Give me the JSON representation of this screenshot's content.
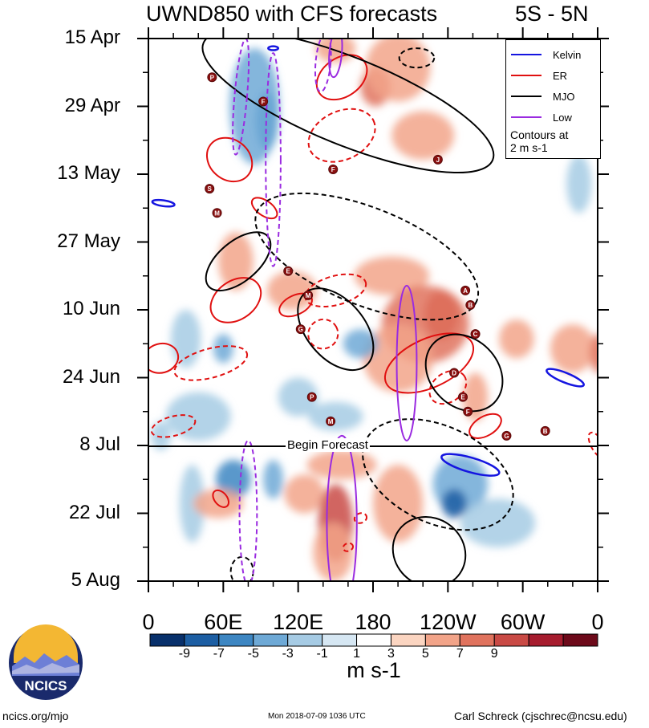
{
  "chart_data": {
    "type": "heatmap",
    "title": "UWND850 with CFS forecasts",
    "region": "5S - 5N",
    "x_tick_labels": [
      "0",
      "60E",
      "120E",
      "180",
      "120W",
      "60W",
      "0"
    ],
    "x_range_deg": [
      0,
      360
    ],
    "y_tick_labels": [
      "15 Apr",
      "29 Apr",
      "13 May",
      "27 May",
      "10 Jun",
      "24 Jun",
      "8 Jul",
      "22 Jul",
      "5 Aug"
    ],
    "y_range_days": [
      0,
      112
    ],
    "forecast_label": "Begin Forecast",
    "forecast_start_day": 84,
    "colorbar": {
      "labels": [
        "-9",
        "-7",
        "-5",
        "-3",
        "-1",
        "1",
        "3",
        "5",
        "7",
        "9"
      ],
      "units": "m s-1",
      "colors": [
        "#08306b",
        "#1c5ea3",
        "#3d86c2",
        "#6ea9d6",
        "#a6cbe4",
        "#d6e7f3",
        "#ffffff",
        "#fbd5c1",
        "#f2a489",
        "#e0735e",
        "#c94a45",
        "#a61c2e",
        "#6d0a1a"
      ]
    },
    "legend": {
      "entries": [
        {
          "name": "Kelvin",
          "color": "#1515e0"
        },
        {
          "name": "ER",
          "color": "#e01010"
        },
        {
          "name": "MJO",
          "color": "#000000"
        },
        {
          "name": "Low",
          "color": "#9a2be0"
        }
      ],
      "note": [
        "Contours at",
        "2 m s-1"
      ]
    },
    "anomaly_patches": [
      {
        "lon": 95,
        "day": 17,
        "rlon": 9,
        "rday": 6,
        "level": -7
      },
      {
        "lon": 85,
        "day": 14,
        "rlon": 20,
        "rday": 12,
        "level": -4
      },
      {
        "lon": 182,
        "day": 10,
        "rlon": 12,
        "rday": 4,
        "level": 6
      },
      {
        "lon": 200,
        "day": 6,
        "rlon": 26,
        "rday": 7,
        "level": 4
      },
      {
        "lon": 150,
        "day": 2,
        "rlon": 16,
        "rday": 3,
        "level": 4
      },
      {
        "lon": 220,
        "day": 20,
        "rlon": 25,
        "rday": 5,
        "level": 3
      },
      {
        "lon": 70,
        "day": 46,
        "rlon": 14,
        "rday": 6,
        "level": 4
      },
      {
        "lon": 115,
        "day": 52,
        "rlon": 20,
        "rday": 4,
        "level": 3
      },
      {
        "lon": 195,
        "day": 49,
        "rlon": 30,
        "rday": 4,
        "level": 3
      },
      {
        "lon": 235,
        "day": 57,
        "rlon": 14,
        "rday": 5,
        "level": 8
      },
      {
        "lon": 222,
        "day": 59,
        "rlon": 35,
        "rday": 8,
        "level": 5
      },
      {
        "lon": 200,
        "day": 66,
        "rlon": 28,
        "rday": 7,
        "level": 3
      },
      {
        "lon": 170,
        "day": 63,
        "rlon": 14,
        "rday": 3,
        "level": -4
      },
      {
        "lon": 60,
        "day": 64,
        "rlon": 8,
        "rday": 3,
        "level": -5
      },
      {
        "lon": 30,
        "day": 62,
        "rlon": 12,
        "rday": 6,
        "level": -3
      },
      {
        "lon": 295,
        "day": 62,
        "rlon": 14,
        "rday": 4,
        "level": 3
      },
      {
        "lon": 340,
        "day": 64,
        "rlon": 18,
        "rday": 5,
        "level": 4
      },
      {
        "lon": 262,
        "day": 74,
        "rlon": 10,
        "rday": 5,
        "level": 4
      },
      {
        "lon": 120,
        "day": 74,
        "rlon": 16,
        "rday": 4,
        "level": -3
      },
      {
        "lon": 40,
        "day": 78,
        "rlon": 26,
        "rday": 5,
        "level": -3
      },
      {
        "lon": 150,
        "day": 78,
        "rlon": 22,
        "rday": 3,
        "level": -3
      },
      {
        "lon": 10,
        "day": 82,
        "rlon": 8,
        "rday": 3,
        "level": -3
      },
      {
        "lon": 68,
        "day": 91,
        "rlon": 14,
        "rday": 4,
        "level": -6
      },
      {
        "lon": 100,
        "day": 91,
        "rlon": 8,
        "rday": 4,
        "level": -5
      },
      {
        "lon": 35,
        "day": 96,
        "rlon": 10,
        "rday": 8,
        "level": -3
      },
      {
        "lon": 56,
        "day": 96,
        "rlon": 20,
        "rday": 3,
        "level": 4
      },
      {
        "lon": 125,
        "day": 94,
        "rlon": 16,
        "rday": 4,
        "level": 3
      },
      {
        "lon": 150,
        "day": 100,
        "rlon": 14,
        "rday": 8,
        "level": 7
      },
      {
        "lon": 148,
        "day": 106,
        "rlon": 16,
        "rday": 6,
        "level": 4
      },
      {
        "lon": 200,
        "day": 96,
        "rlon": 20,
        "rday": 8,
        "level": 3
      },
      {
        "lon": 250,
        "day": 92,
        "rlon": 22,
        "rday": 6,
        "level": -5
      },
      {
        "lon": 245,
        "day": 96,
        "rlon": 10,
        "rday": 3,
        "level": -8
      },
      {
        "lon": 280,
        "day": 100,
        "rlon": 30,
        "rday": 5,
        "level": -3
      },
      {
        "lon": 155,
        "day": 88,
        "rlon": 28,
        "rday": 3,
        "level": 3
      },
      {
        "lon": 360,
        "day": 65,
        "rlon": 6,
        "rday": 4,
        "level": 5
      },
      {
        "lon": 345,
        "day": 30,
        "rlon": 10,
        "rday": 6,
        "level": -3
      }
    ],
    "contours": [
      {
        "type": "Kelvin",
        "style": "solid",
        "lon": 258,
        "day": 88,
        "rlon": 24,
        "rday": 1.5,
        "rot": 16
      },
      {
        "type": "Kelvin",
        "style": "solid",
        "lon": 334,
        "day": 70,
        "rlon": 16,
        "rday": 1,
        "rot": 22
      },
      {
        "type": "Kelvin",
        "style": "solid",
        "lon": 12,
        "day": 34,
        "rlon": 9,
        "rday": 0.6,
        "rot": 8
      },
      {
        "type": "Kelvin",
        "style": "solid",
        "lon": 100,
        "day": 2,
        "rlon": 4,
        "rday": 0.4,
        "rot": 0
      },
      {
        "type": "ER",
        "style": "solid",
        "lon": 155,
        "day": 8,
        "rlon": 22,
        "rday": 4,
        "rot": -35
      },
      {
        "type": "ER",
        "style": "solid",
        "lon": 65,
        "day": 25,
        "rlon": 16,
        "rday": 5,
        "rot": -50
      },
      {
        "type": "ER",
        "style": "solid",
        "lon": 70,
        "day": 54,
        "rlon": 22,
        "rday": 4,
        "rot": -35
      },
      {
        "type": "ER",
        "style": "solid",
        "lon": 118,
        "day": 55,
        "rlon": 14,
        "rday": 2,
        "rot": -25
      },
      {
        "type": "ER",
        "style": "solid",
        "lon": 225,
        "day": 67,
        "rlon": 38,
        "rday": 5,
        "rot": -25
      },
      {
        "type": "ER",
        "style": "solid",
        "lon": 270,
        "day": 80,
        "rlon": 14,
        "rday": 2,
        "rot": -30
      },
      {
        "type": "ER",
        "style": "solid",
        "lon": 10,
        "day": 66,
        "rlon": 14,
        "rday": 3,
        "rot": -15
      },
      {
        "type": "ER",
        "style": "solid",
        "lon": 58,
        "day": 95,
        "rlon": 5,
        "rday": 2,
        "rot": -40
      },
      {
        "type": "ER",
        "style": "solid",
        "lon": 93,
        "day": 35,
        "rlon": 6,
        "rday": 3,
        "rot": -55
      },
      {
        "type": "ER",
        "style": "dashed",
        "lon": 155,
        "day": 20,
        "rlon": 28,
        "rday": 5,
        "rot": -25
      },
      {
        "type": "ER",
        "style": "dashed",
        "lon": 150,
        "day": 52,
        "rlon": 25,
        "rday": 3,
        "rot": -15
      },
      {
        "type": "ER",
        "style": "dashed",
        "lon": 50,
        "day": 67,
        "rlon": 30,
        "rday": 3,
        "rot": -15
      },
      {
        "type": "ER",
        "style": "dashed",
        "lon": 140,
        "day": 61,
        "rlon": 12,
        "rday": 3,
        "rot": -30
      },
      {
        "type": "ER",
        "style": "dashed",
        "lon": 240,
        "day": 72,
        "rlon": 16,
        "rday": 3,
        "rot": -35
      },
      {
        "type": "ER",
        "style": "dashed",
        "lon": 20,
        "day": 80,
        "rlon": 18,
        "rday": 2,
        "rot": -15
      },
      {
        "type": "ER",
        "style": "dashed",
        "lon": 170,
        "day": 99,
        "rlon": 5,
        "rday": 1,
        "rot": -20
      },
      {
        "type": "ER",
        "style": "dashed",
        "lon": 160,
        "day": 105,
        "rlon": 4,
        "rday": 0.8,
        "rot": -20
      },
      {
        "type": "ER",
        "style": "dashed",
        "lon": 360,
        "day": 84,
        "rlon": 5,
        "rday": 3,
        "rot": -30
      },
      {
        "type": "MJO",
        "style": "solid",
        "lon": 160,
        "day": 13,
        "rlon": 125,
        "rday": 9,
        "rot": 22
      },
      {
        "type": "MJO",
        "style": "solid",
        "lon": 72,
        "day": 46,
        "rlon": 16,
        "rday": 8,
        "rot": 50
      },
      {
        "type": "MJO",
        "style": "solid",
        "lon": 150,
        "day": 60,
        "rlon": 38,
        "rday": 6,
        "rot": 50
      },
      {
        "type": "MJO",
        "style": "solid",
        "lon": 253,
        "day": 69,
        "rlon": 34,
        "rday": 7,
        "rot": 45
      },
      {
        "type": "MJO",
        "style": "solid",
        "lon": 225,
        "day": 106,
        "rlon": 30,
        "rday": 7,
        "rot": 35
      },
      {
        "type": "MJO",
        "style": "dashed",
        "lon": 175,
        "day": 45,
        "rlon": 95,
        "rday": 10,
        "rot": 22
      },
      {
        "type": "MJO",
        "style": "dashed",
        "lon": 232,
        "day": 90,
        "rlon": 64,
        "rday": 10,
        "rot": 25
      },
      {
        "type": "MJO",
        "style": "dashed",
        "lon": 215,
        "day": 4,
        "rlon": 14,
        "rday": 2,
        "rot": 0
      },
      {
        "type": "MJO",
        "style": "dashed",
        "lon": 75,
        "day": 110,
        "rlon": 9,
        "rday": 3,
        "rot": 0
      },
      {
        "type": "Low",
        "style": "solid",
        "lon": 155,
        "day": 100,
        "rlon": 12,
        "rday": 18,
        "rot": 0
      },
      {
        "type": "Low",
        "style": "solid",
        "lon": 207,
        "day": 67,
        "rlon": 8,
        "rday": 16,
        "rot": 0
      },
      {
        "type": "Low",
        "style": "solid",
        "lon": 150,
        "day": 3,
        "rlon": 5,
        "rday": 5,
        "rot": 5
      },
      {
        "type": "Low",
        "style": "dashed",
        "lon": 80,
        "day": 98,
        "rlon": 7,
        "rday": 15,
        "rot": 0
      },
      {
        "type": "Low",
        "style": "dashed",
        "lon": 74,
        "day": 12,
        "rlon": 5,
        "rday": 12,
        "rot": 5
      },
      {
        "type": "Low",
        "style": "dashed",
        "lon": 100,
        "day": 25,
        "rlon": 6,
        "rday": 22,
        "rot": 0
      },
      {
        "type": "Low",
        "style": "dashed",
        "lon": 140,
        "day": 5,
        "rlon": 6,
        "rday": 6,
        "rot": 5
      }
    ],
    "storm_markers": [
      {
        "letter": "P",
        "lon": 51,
        "day": 8
      },
      {
        "letter": "F",
        "lon": 92,
        "day": 13
      },
      {
        "letter": "J",
        "lon": 232,
        "day": 25
      },
      {
        "letter": "S",
        "lon": 49,
        "day": 31
      },
      {
        "letter": "M",
        "lon": 55,
        "day": 36
      },
      {
        "letter": "E",
        "lon": 112,
        "day": 48
      },
      {
        "letter": "M",
        "lon": 128,
        "day": 53
      },
      {
        "letter": "G",
        "lon": 122,
        "day": 60
      },
      {
        "letter": "A",
        "lon": 254,
        "day": 52
      },
      {
        "letter": "B",
        "lon": 258,
        "day": 55
      },
      {
        "letter": "C",
        "lon": 262,
        "day": 61
      },
      {
        "letter": "D",
        "lon": 245,
        "day": 69
      },
      {
        "letter": "E",
        "lon": 252,
        "day": 74
      },
      {
        "letter": "F",
        "lon": 256,
        "day": 77
      },
      {
        "letter": "G",
        "lon": 287,
        "day": 82
      },
      {
        "letter": "B",
        "lon": 318,
        "day": 81
      },
      {
        "letter": "P",
        "lon": 131,
        "day": 74
      },
      {
        "letter": "M",
        "lon": 146,
        "day": 79
      },
      {
        "letter": "F",
        "lon": 148,
        "day": 27
      }
    ]
  },
  "footer": {
    "left": "ncics.org/mjo",
    "middle": "Mon 2018-07-09 1036 UTC",
    "right": "Carl Schreck (cjschrec@ncsu.edu)",
    "logo_text": "NCICS"
  }
}
